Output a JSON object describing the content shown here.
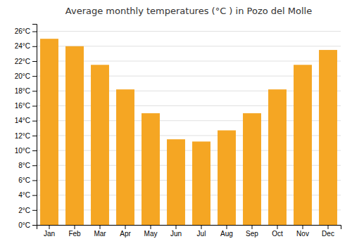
{
  "chart_data": {
    "type": "bar",
    "title": "Average monthly temperatures (°C ) in Pozo del Molle",
    "categories": [
      "Jan",
      "Feb",
      "Mar",
      "Apr",
      "May",
      "Jun",
      "Jul",
      "Aug",
      "Sep",
      "Oct",
      "Nov",
      "Dec"
    ],
    "values": [
      25.0,
      24.0,
      21.5,
      18.2,
      15.0,
      11.5,
      11.2,
      12.7,
      15.0,
      18.2,
      21.5,
      23.5
    ],
    "color": "#F5A623",
    "ylim": [
      0,
      27
    ],
    "yticks": [
      {
        "value": 0,
        "label": "0°C"
      },
      {
        "value": 2,
        "label": "2°C"
      },
      {
        "value": 4,
        "label": "4°C"
      },
      {
        "value": 6,
        "label": "6°C"
      },
      {
        "value": 8,
        "label": "8°C"
      },
      {
        "value": 10,
        "label": "10°C"
      },
      {
        "value": 12,
        "label": "12°C"
      },
      {
        "value": 14,
        "label": "14°C"
      },
      {
        "value": 16,
        "label": "16°C"
      },
      {
        "value": 18,
        "label": "18°C"
      },
      {
        "value": 20,
        "label": "20°C"
      },
      {
        "value": 22,
        "label": "22°C"
      },
      {
        "value": 24,
        "label": "24°C"
      },
      {
        "value": 26,
        "label": "26°C"
      }
    ],
    "grid": true
  }
}
